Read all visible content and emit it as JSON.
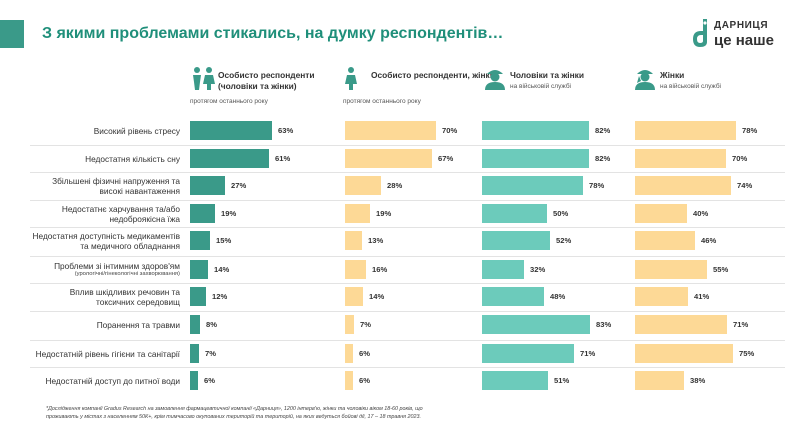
{
  "title": "З якими проблемами стикались, на думку респондентів…",
  "logo": {
    "name": "ДАРНИЦЯ",
    "tagline": "це наше"
  },
  "colors": {
    "teal_dark": "#3a9a89",
    "teal_light": "#6ccbbb",
    "peach": "#fdd996",
    "title": "#1f8f7a"
  },
  "columns": [
    {
      "icon": "couple-icon",
      "title": "Особисто респонденти (чоловіки та жінки)",
      "subtitle": "протягом останнього року",
      "color": "#3a9a89"
    },
    {
      "icon": "woman-icon",
      "title": "Особисто респонденти, жінки",
      "subtitle": "протягом останнього року",
      "color": "#fdd996"
    },
    {
      "icon": "soldier-icon",
      "title": "Чоловіки та жінки",
      "subtitle": "на військовій службі",
      "color": "#6ccbbb"
    },
    {
      "icon": "female-soldier-icon",
      "title": "Жінки",
      "subtitle": "на військовій службі",
      "color": "#fdd996"
    }
  ],
  "chart_data": {
    "type": "bar",
    "orientation": "horizontal",
    "categories": [
      {
        "label": "Високий рівень стресу",
        "note": ""
      },
      {
        "label": "Недостатня кількість сну",
        "note": ""
      },
      {
        "label": "Збільшені фізичні напруження та високі навантаження",
        "note": ""
      },
      {
        "label": "Недостатнє харчування та/або недоброякісна їжа",
        "note": ""
      },
      {
        "label": "Недостатня доступність медикаментів та медичного обладнання",
        "note": ""
      },
      {
        "label": "Проблеми зі інтимним здоров'ям",
        "note": "(урологічні/гінекологічні захворювання)"
      },
      {
        "label": "Вплив шкідливих речовин та токсичних середовищ",
        "note": ""
      },
      {
        "label": "Поранення та травми",
        "note": ""
      },
      {
        "label": "Недостатній рівень гігієни та санітарії",
        "note": ""
      },
      {
        "label": "Недостатній доступ до питної води",
        "note": ""
      }
    ],
    "series": [
      {
        "values": [
          63,
          61,
          27,
          19,
          15,
          14,
          12,
          8,
          7,
          6
        ],
        "labels": [
          "63%",
          "61%",
          "27%",
          "19%",
          "15%",
          "14%",
          "12%",
          "8%",
          "7%",
          "6%"
        ]
      },
      {
        "values": [
          70,
          67,
          28,
          19,
          13,
          16,
          14,
          7,
          6,
          6
        ],
        "labels": [
          "70%",
          "67%",
          "28%",
          "19%",
          "13%",
          "16%",
          "14%",
          "7%",
          "6%",
          "6%"
        ]
      },
      {
        "values": [
          82,
          82,
          78,
          50,
          52,
          32,
          48,
          83,
          71,
          51
        ],
        "labels": [
          "82%",
          "82%",
          "78%",
          "50%",
          "52%",
          "32%",
          "48%",
          "83%",
          "71%",
          "51%"
        ]
      },
      {
        "values": [
          78,
          70,
          74,
          40,
          46,
          55,
          41,
          71,
          75,
          38
        ],
        "labels": [
          "78%",
          "70%",
          "74%",
          "40%",
          "46%",
          "55%",
          "41%",
          "71%",
          "75%",
          "38%"
        ]
      }
    ],
    "xlim": [
      0,
      100
    ]
  },
  "footnote": "*Дослідження компанії Gradus Research на замовлення фармацевтичної компанії «Дарниця», 1200 інтерв'ю, жінки та чоловіки віком 18-60 років, що проживають у містах з населенням 50К+, крім тимчасово окупованих територій та територій, на яких ведуться бойові дії, 17 – 18 травня 2023."
}
